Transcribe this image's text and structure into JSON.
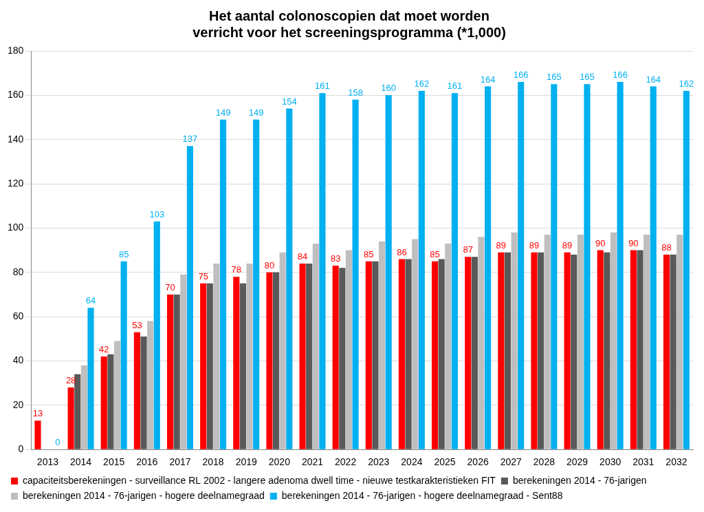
{
  "chart_data": {
    "type": "bar",
    "title": "Het aantal colonoscopien dat moet worden verricht voor het screeningsprogramma (*1,000)",
    "categories": [
      "2013",
      "2014",
      "2015",
      "2016",
      "2017",
      "2018",
      "2019",
      "2020",
      "2021",
      "2022",
      "2023",
      "2024",
      "2025",
      "2026",
      "2027",
      "2028",
      "2029",
      "2030",
      "2031",
      "2032"
    ],
    "series": [
      {
        "name": "capaciteitsberekeningen - surveillance RL 2002 - langere adenoma dwell time - nieuwe testkarakteristieken FIT",
        "color": "#ff0000",
        "data_labels": true,
        "values": [
          13,
          28,
          42,
          53,
          70,
          75,
          78,
          80,
          84,
          83,
          85,
          86,
          85,
          87,
          89,
          89,
          89,
          90,
          90,
          88
        ]
      },
      {
        "name": "berekeningen 2014 - 76-jarigen",
        "color": "#595959",
        "values": [
          null,
          34,
          43,
          51,
          70,
          75,
          75,
          80,
          84,
          82,
          85,
          86,
          86,
          87,
          89,
          89,
          88,
          89,
          90,
          88
        ]
      },
      {
        "name": "berekeningen 2014 - 76-jarigen - hogere deelnamegraad",
        "color": "#bfbfbf",
        "values": [
          null,
          38,
          49,
          58,
          79,
          84,
          84,
          89,
          93,
          90,
          94,
          95,
          93,
          96,
          98,
          97,
          97,
          98,
          97,
          97
        ]
      },
      {
        "name": "berekeningen 2014 - 76-jarigen - hogere deelnamegraad - Sent88",
        "color": "#00b0f0",
        "data_labels": true,
        "values": [
          0,
          64,
          85,
          103,
          137,
          149,
          149,
          154,
          161,
          158,
          160,
          162,
          161,
          164,
          166,
          165,
          165,
          166,
          164,
          162
        ]
      }
    ],
    "ylim": [
      0,
      180
    ],
    "yticks": [
      0,
      20,
      40,
      60,
      80,
      100,
      120,
      140,
      160,
      180
    ],
    "grid": true,
    "legend": "bottom"
  }
}
